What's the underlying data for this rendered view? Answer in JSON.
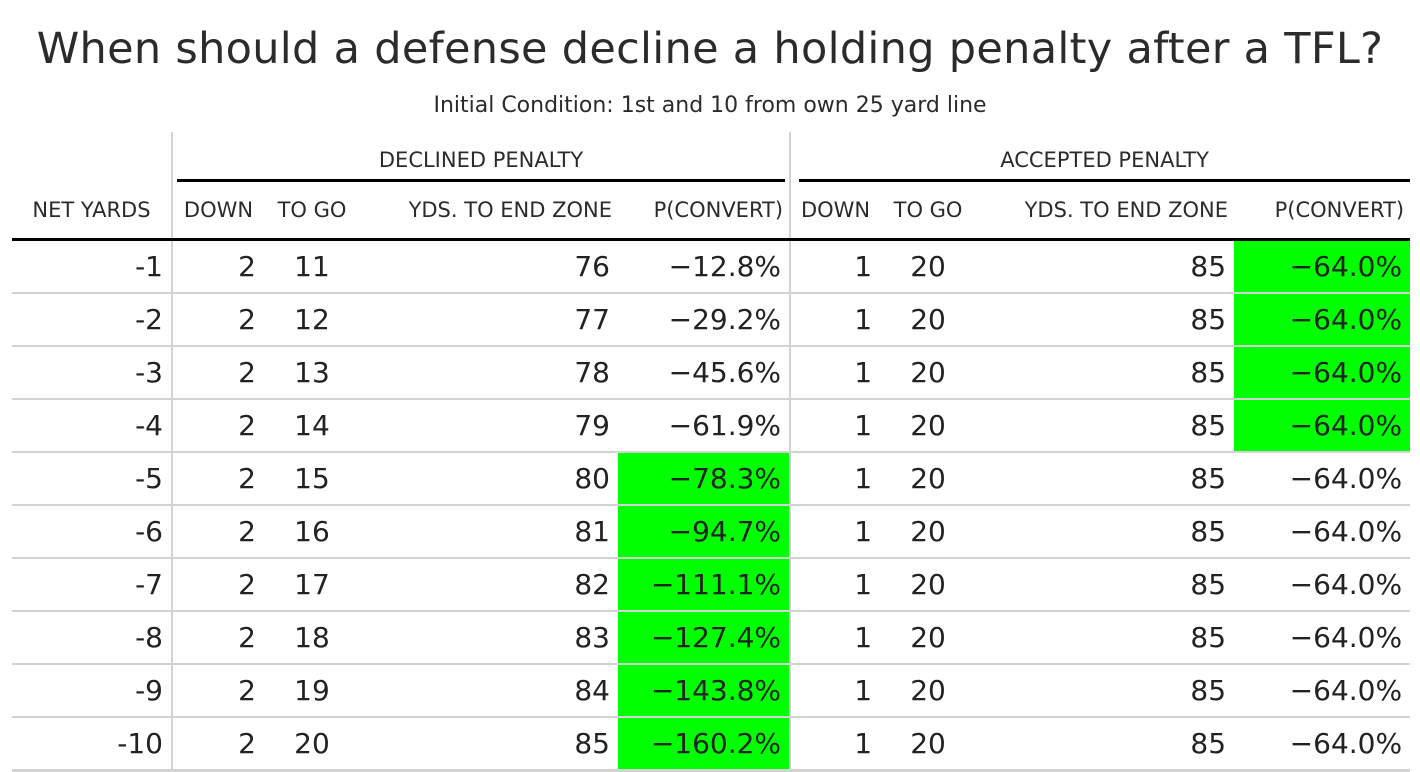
{
  "title": "When should a defense decline a holding penalty after a TFL?",
  "subtitle": "Initial Condition: 1st and 10 from own 25 yard line",
  "spanners": {
    "declined": "DECLINED PENALTY",
    "accepted": "ACCEPTED PENALTY"
  },
  "columns": {
    "net_yards": "NET YARDS",
    "down": "DOWN",
    "to_go": "TO GO",
    "yds_to_end_zone": "YDS. TO END ZONE",
    "p_convert": "P(CONVERT)"
  },
  "highlight_color": "#00ff00",
  "rows": [
    {
      "net": "-1",
      "d_down": "2",
      "d_togo": "11",
      "d_yds": "76",
      "d_p": "−12.8%",
      "d_hl": false,
      "a_down": "1",
      "a_togo": "20",
      "a_yds": "85",
      "a_p": "−64.0%",
      "a_hl": true
    },
    {
      "net": "-2",
      "d_down": "2",
      "d_togo": "12",
      "d_yds": "77",
      "d_p": "−29.2%",
      "d_hl": false,
      "a_down": "1",
      "a_togo": "20",
      "a_yds": "85",
      "a_p": "−64.0%",
      "a_hl": true
    },
    {
      "net": "-3",
      "d_down": "2",
      "d_togo": "13",
      "d_yds": "78",
      "d_p": "−45.6%",
      "d_hl": false,
      "a_down": "1",
      "a_togo": "20",
      "a_yds": "85",
      "a_p": "−64.0%",
      "a_hl": true
    },
    {
      "net": "-4",
      "d_down": "2",
      "d_togo": "14",
      "d_yds": "79",
      "d_p": "−61.9%",
      "d_hl": false,
      "a_down": "1",
      "a_togo": "20",
      "a_yds": "85",
      "a_p": "−64.0%",
      "a_hl": true
    },
    {
      "net": "-5",
      "d_down": "2",
      "d_togo": "15",
      "d_yds": "80",
      "d_p": "−78.3%",
      "d_hl": true,
      "a_down": "1",
      "a_togo": "20",
      "a_yds": "85",
      "a_p": "−64.0%",
      "a_hl": false
    },
    {
      "net": "-6",
      "d_down": "2",
      "d_togo": "16",
      "d_yds": "81",
      "d_p": "−94.7%",
      "d_hl": true,
      "a_down": "1",
      "a_togo": "20",
      "a_yds": "85",
      "a_p": "−64.0%",
      "a_hl": false
    },
    {
      "net": "-7",
      "d_down": "2",
      "d_togo": "17",
      "d_yds": "82",
      "d_p": "−111.1%",
      "d_hl": true,
      "a_down": "1",
      "a_togo": "20",
      "a_yds": "85",
      "a_p": "−64.0%",
      "a_hl": false
    },
    {
      "net": "-8",
      "d_down": "2",
      "d_togo": "18",
      "d_yds": "83",
      "d_p": "−127.4%",
      "d_hl": true,
      "a_down": "1",
      "a_togo": "20",
      "a_yds": "85",
      "a_p": "−64.0%",
      "a_hl": false
    },
    {
      "net": "-9",
      "d_down": "2",
      "d_togo": "19",
      "d_yds": "84",
      "d_p": "−143.8%",
      "d_hl": true,
      "a_down": "1",
      "a_togo": "20",
      "a_yds": "85",
      "a_p": "−64.0%",
      "a_hl": false
    },
    {
      "net": "-10",
      "d_down": "2",
      "d_togo": "20",
      "d_yds": "85",
      "d_p": "−160.2%",
      "d_hl": true,
      "a_down": "1",
      "a_togo": "20",
      "a_yds": "85",
      "a_p": "−64.0%",
      "a_hl": false
    }
  ]
}
